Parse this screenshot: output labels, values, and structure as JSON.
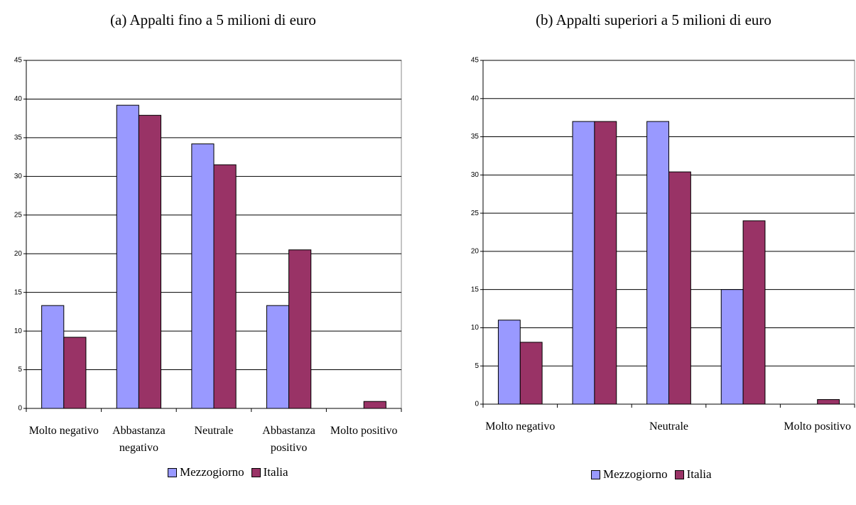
{
  "chart_data": [
    {
      "type": "bar",
      "title": "(a) Appalti fino a 5 milioni di euro",
      "categories": [
        "Molto negativo",
        "Abbastanza negativo",
        "Neutrale",
        "Abbastanza positivo",
        "Molto positivo"
      ],
      "series": [
        {
          "name": "Mezzogiorno",
          "color": "#9999ff",
          "values": [
            13.3,
            39.2,
            34.2,
            13.3,
            0
          ]
        },
        {
          "name": "Italia",
          "color": "#993366",
          "values": [
            9.2,
            37.9,
            31.5,
            20.5,
            0.9
          ]
        }
      ],
      "ylim": [
        0,
        45
      ],
      "yticks": [
        0,
        5,
        10,
        15,
        20,
        25,
        30,
        35,
        40,
        45
      ],
      "grid": true
    },
    {
      "type": "bar",
      "title": "(b) Appalti superiori a 5 milioni di euro",
      "categories": [
        "Molto negativo",
        null,
        "Neutrale",
        null,
        "Molto positivo"
      ],
      "series": [
        {
          "name": "Mezzogiorno",
          "color": "#9999ff",
          "values": [
            11,
            37,
            37,
            15,
            0
          ]
        },
        {
          "name": "Italia",
          "color": "#993366",
          "values": [
            8.1,
            37,
            30.4,
            24,
            0.6
          ]
        }
      ],
      "ylim": [
        0,
        45
      ],
      "yticks": [
        0,
        5,
        10,
        15,
        20,
        25,
        30,
        35,
        40,
        45
      ],
      "grid": true
    }
  ]
}
